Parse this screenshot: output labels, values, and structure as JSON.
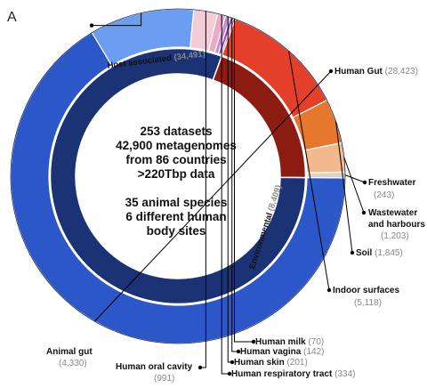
{
  "panel_label": "A",
  "center_text": [
    "253 datasets",
    "42,900 metagenomes",
    "from 86 countries",
    ">220Tbp data",
    "",
    "35 animal species",
    "6 different human",
    "body sites"
  ],
  "chart_data": {
    "type": "pie",
    "inner": [
      {
        "name": "Host associated",
        "count": "(34,491)",
        "value": 34491,
        "color": "#1b3375"
      },
      {
        "name": "Environmental",
        "count": "(8,409)",
        "value": 8409,
        "color": "#8c1c12"
      }
    ],
    "outer": [
      {
        "name": "Human Gut",
        "count": "(28,423)",
        "value": 28423,
        "color": "#2c57c9"
      },
      {
        "name": "Animal gut",
        "count": "(4,330)",
        "value": 4330,
        "color": "#6b9ef0"
      },
      {
        "name": "Human oral cavity",
        "count": "(991)",
        "value": 991,
        "color": "#f2cdd7"
      },
      {
        "name": "Human respiratory tract",
        "count": "(334)",
        "value": 334,
        "color": "#ebaac8"
      },
      {
        "name": "Human skin",
        "count": "(201)",
        "value": 201,
        "color": "#c98bd0"
      },
      {
        "name": "Human vagina",
        "count": "(142)",
        "value": 142,
        "color": "#9c4fbc"
      },
      {
        "name": "Human milk",
        "count": "(70)",
        "value": 70,
        "color": "#6a1f78"
      },
      {
        "name": "Indoor surfaces",
        "count": "(5,118)",
        "value": 5118,
        "color": "#e33f2a"
      },
      {
        "name": "Soil",
        "count": "(1,845)",
        "value": 1845,
        "color": "#e8772e"
      },
      {
        "name": "Wastewater and harbours",
        "count": "(1,203)",
        "value": 1203,
        "color": "#f3b98c"
      },
      {
        "name": "Freshwater",
        "count": "(243)",
        "value": 243,
        "color": "#e0d2c8"
      }
    ]
  }
}
